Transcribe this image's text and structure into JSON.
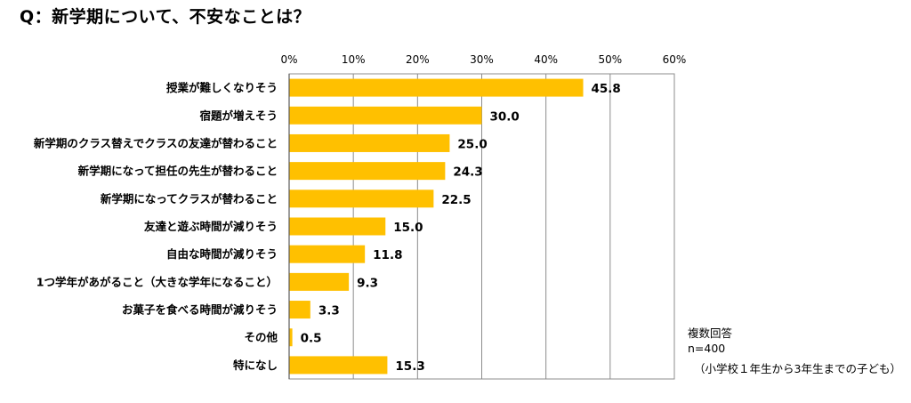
{
  "title": "Q：新学期について、不安なことは？",
  "notes": {
    "response_type": "複数回答",
    "sample_size": "n=400",
    "respondents": "（小学校１年生から3年生までの子ども）"
  },
  "colors": {
    "bar": "#FFC000",
    "grid": "#8C8C8C",
    "axis": "#595959"
  },
  "chart_data": {
    "type": "bar",
    "orientation": "horizontal",
    "title": "Q：新学期について、不安なことは？",
    "xlim": [
      0,
      60
    ],
    "x_ticks": [
      0,
      10,
      20,
      30,
      40,
      50,
      60
    ],
    "x_tick_labels": [
      "0%",
      "10%",
      "20%",
      "30%",
      "40%",
      "50%",
      "60%"
    ],
    "xlabel": "",
    "ylabel": "",
    "grid": true,
    "categories": [
      "授業が難しくなりそう",
      "宿題が増えそう",
      "新学期のクラス替えでクラスの友達が替わること",
      "新学期になって担任の先生が替わること",
      "新学期になってクラスが替わること",
      "友達と遊ぶ時間が減りそう",
      "自由な時間が減りそう",
      "1つ学年があがること（大きな学年になること）",
      "お菓子を食べる時間が減りそう",
      "その他",
      "特になし"
    ],
    "values": [
      45.8,
      30.0,
      25.0,
      24.3,
      22.5,
      15.0,
      11.8,
      9.3,
      3.3,
      0.5,
      15.3
    ],
    "value_labels": [
      "45.8",
      "30.0",
      "25.0",
      "24.3",
      "22.5",
      "15.0",
      "11.8",
      "9.3",
      "3.3",
      "0.5",
      "15.3"
    ]
  }
}
